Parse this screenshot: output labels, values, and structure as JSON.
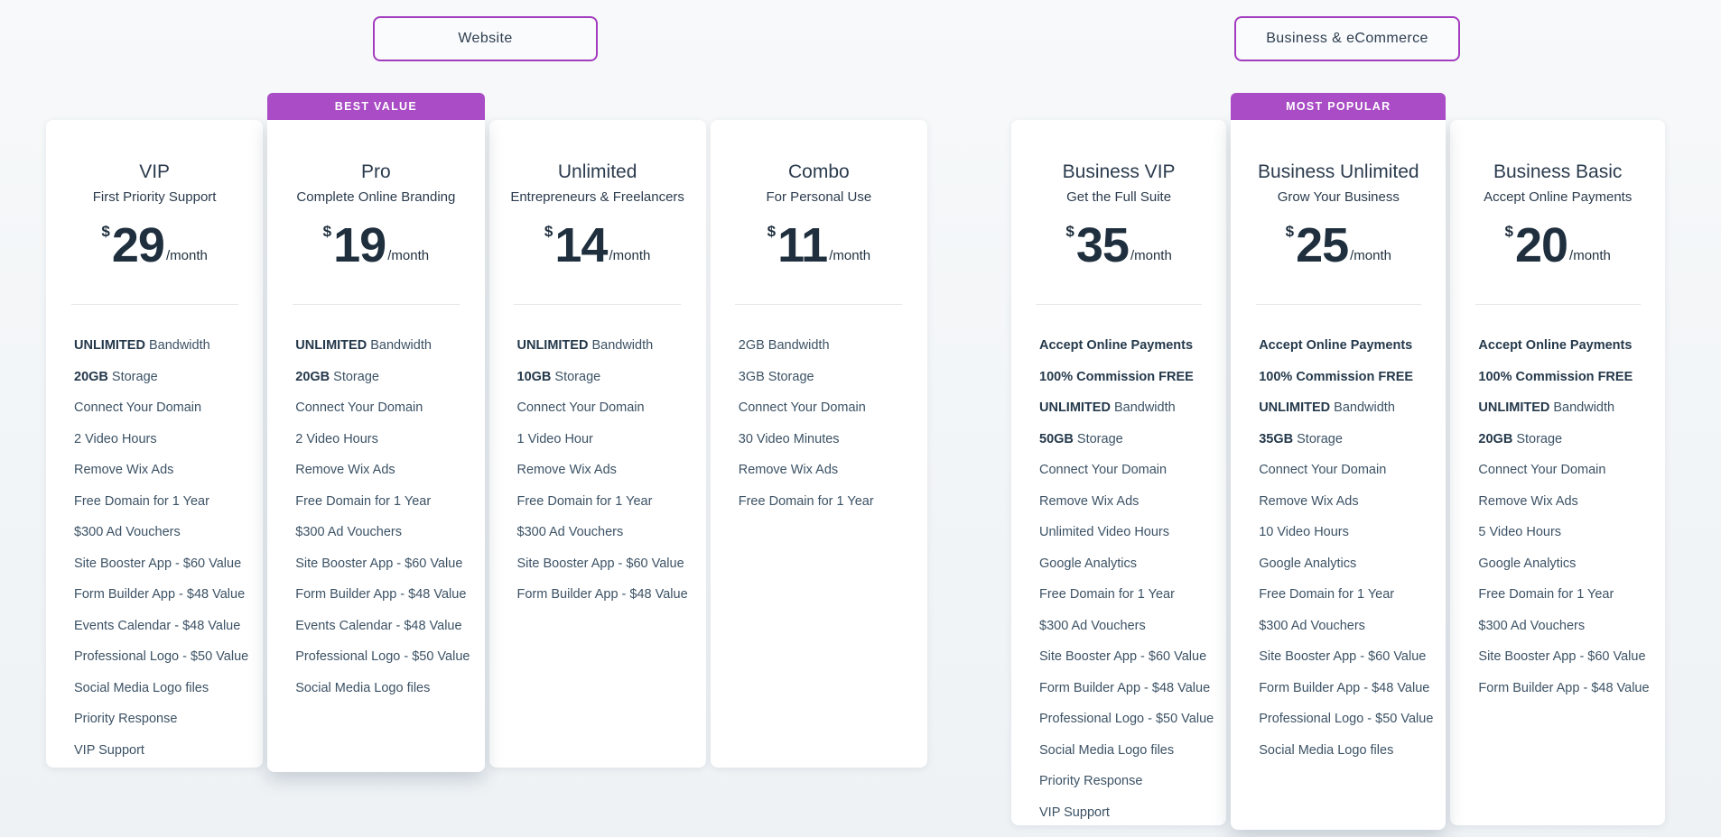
{
  "colors": {
    "accent_purple": "#a94cc5",
    "tab_border_purple": "#a43cc0",
    "heading_text": "#2b3b4d",
    "price_text": "#1f2f3e",
    "feature_text": "#3c5265",
    "card_background": "#ffffff",
    "page_background": "#f0f3f6",
    "badge_text": "#ffffff"
  },
  "sections": [
    {
      "id": "website",
      "tab_label": "Website",
      "plans": [
        {
          "name": "VIP",
          "subtitle": "First Priority Support",
          "currency": "$",
          "price": "29",
          "period": "/month",
          "badge": "",
          "featured": false,
          "features": [
            {
              "bold": "UNLIMITED",
              "text": " Bandwidth"
            },
            {
              "bold": "20GB",
              "text": " Storage"
            },
            {
              "bold": "",
              "text": "Connect Your Domain"
            },
            {
              "bold": "",
              "text": "2 Video Hours"
            },
            {
              "bold": "",
              "text": "Remove Wix Ads"
            },
            {
              "bold": "",
              "text": "Free Domain for 1 Year"
            },
            {
              "bold": "",
              "text": "$300 Ad Vouchers"
            },
            {
              "bold": "",
              "text": "Site Booster App - $60 Value"
            },
            {
              "bold": "",
              "text": "Form Builder App - $48 Value"
            },
            {
              "bold": "",
              "text": "Events Calendar - $48 Value"
            },
            {
              "bold": "",
              "text": "Professional Logo - $50 Value"
            },
            {
              "bold": "",
              "text": "Social Media Logo files"
            },
            {
              "bold": "",
              "text": "Priority Response"
            },
            {
              "bold": "",
              "text": "VIP Support"
            }
          ]
        },
        {
          "name": "Pro",
          "subtitle": "Complete Online Branding",
          "currency": "$",
          "price": "19",
          "period": "/month",
          "badge": "BEST VALUE",
          "featured": true,
          "features": [
            {
              "bold": "UNLIMITED",
              "text": " Bandwidth"
            },
            {
              "bold": "20GB",
              "text": " Storage"
            },
            {
              "bold": "",
              "text": "Connect Your Domain"
            },
            {
              "bold": "",
              "text": "2 Video Hours"
            },
            {
              "bold": "",
              "text": "Remove Wix Ads"
            },
            {
              "bold": "",
              "text": "Free Domain for 1 Year"
            },
            {
              "bold": "",
              "text": "$300 Ad Vouchers"
            },
            {
              "bold": "",
              "text": "Site Booster App - $60 Value"
            },
            {
              "bold": "",
              "text": "Form Builder App - $48 Value"
            },
            {
              "bold": "",
              "text": "Events Calendar - $48 Value"
            },
            {
              "bold": "",
              "text": "Professional Logo - $50 Value"
            },
            {
              "bold": "",
              "text": "Social Media Logo files"
            }
          ]
        },
        {
          "name": "Unlimited",
          "subtitle": "Entrepreneurs & Freelancers",
          "currency": "$",
          "price": "14",
          "period": "/month",
          "badge": "",
          "featured": false,
          "features": [
            {
              "bold": "UNLIMITED",
              "text": " Bandwidth"
            },
            {
              "bold": "10GB",
              "text": " Storage"
            },
            {
              "bold": "",
              "text": "Connect Your Domain"
            },
            {
              "bold": "",
              "text": "1 Video Hour"
            },
            {
              "bold": "",
              "text": "Remove Wix Ads"
            },
            {
              "bold": "",
              "text": "Free Domain for 1 Year"
            },
            {
              "bold": "",
              "text": "$300 Ad Vouchers"
            },
            {
              "bold": "",
              "text": "Site Booster App - $60 Value"
            },
            {
              "bold": "",
              "text": "Form Builder App - $48 Value"
            }
          ]
        },
        {
          "name": "Combo",
          "subtitle": "For Personal Use",
          "currency": "$",
          "price": "11",
          "period": "/month",
          "badge": "",
          "featured": false,
          "features": [
            {
              "bold": "",
              "text": "2GB Bandwidth"
            },
            {
              "bold": "",
              "text": "3GB Storage"
            },
            {
              "bold": "",
              "text": "Connect Your Domain"
            },
            {
              "bold": "",
              "text": "30 Video Minutes"
            },
            {
              "bold": "",
              "text": "Remove Wix Ads"
            },
            {
              "bold": "",
              "text": "Free Domain for 1 Year"
            }
          ]
        }
      ]
    },
    {
      "id": "business",
      "tab_label": "Business & eCommerce",
      "plans": [
        {
          "name": "Business VIP",
          "subtitle": "Get the Full Suite",
          "currency": "$",
          "price": "35",
          "period": "/month",
          "badge": "",
          "featured": false,
          "features": [
            {
              "bold": "Accept Online Payments",
              "text": ""
            },
            {
              "bold": "100% Commission FREE",
              "text": ""
            },
            {
              "bold": "UNLIMITED",
              "text": " Bandwidth"
            },
            {
              "bold": "50GB",
              "text": " Storage"
            },
            {
              "bold": "",
              "text": "Connect Your Domain"
            },
            {
              "bold": "",
              "text": "Remove Wix Ads"
            },
            {
              "bold": "",
              "text": "Unlimited Video Hours"
            },
            {
              "bold": "",
              "text": "Google Analytics"
            },
            {
              "bold": "",
              "text": "Free Domain for 1 Year"
            },
            {
              "bold": "",
              "text": "$300 Ad Vouchers"
            },
            {
              "bold": "",
              "text": "Site Booster App - $60 Value"
            },
            {
              "bold": "",
              "text": "Form Builder App - $48 Value"
            },
            {
              "bold": "",
              "text": "Professional Logo - $50 Value"
            },
            {
              "bold": "",
              "text": "Social Media Logo files"
            },
            {
              "bold": "",
              "text": "Priority Response"
            },
            {
              "bold": "",
              "text": "VIP Support"
            }
          ]
        },
        {
          "name": "Business Unlimited",
          "subtitle": "Grow Your Business",
          "currency": "$",
          "price": "25",
          "period": "/month",
          "badge": "MOST POPULAR",
          "featured": true,
          "features": [
            {
              "bold": "Accept Online Payments",
              "text": ""
            },
            {
              "bold": "100% Commission FREE",
              "text": ""
            },
            {
              "bold": "UNLIMITED",
              "text": " Bandwidth"
            },
            {
              "bold": "35GB",
              "text": " Storage"
            },
            {
              "bold": "",
              "text": "Connect Your Domain"
            },
            {
              "bold": "",
              "text": "Remove Wix Ads"
            },
            {
              "bold": "",
              "text": "10 Video Hours"
            },
            {
              "bold": "",
              "text": "Google Analytics"
            },
            {
              "bold": "",
              "text": "Free Domain for 1 Year"
            },
            {
              "bold": "",
              "text": "$300 Ad Vouchers"
            },
            {
              "bold": "",
              "text": "Site Booster App - $60 Value"
            },
            {
              "bold": "",
              "text": "Form Builder App - $48 Value"
            },
            {
              "bold": "",
              "text": "Professional Logo - $50 Value"
            },
            {
              "bold": "",
              "text": "Social Media Logo files"
            }
          ]
        },
        {
          "name": "Business Basic",
          "subtitle": "Accept Online Payments",
          "currency": "$",
          "price": "20",
          "period": "/month",
          "badge": "",
          "featured": false,
          "features": [
            {
              "bold": "Accept Online Payments",
              "text": ""
            },
            {
              "bold": "100% Commission FREE",
              "text": ""
            },
            {
              "bold": "UNLIMITED",
              "text": " Bandwidth"
            },
            {
              "bold": "20GB",
              "text": " Storage"
            },
            {
              "bold": "",
              "text": "Connect Your Domain"
            },
            {
              "bold": "",
              "text": "Remove Wix Ads"
            },
            {
              "bold": "",
              "text": "5 Video Hours"
            },
            {
              "bold": "",
              "text": "Google Analytics"
            },
            {
              "bold": "",
              "text": "Free Domain for 1 Year"
            },
            {
              "bold": "",
              "text": "$300 Ad Vouchers"
            },
            {
              "bold": "",
              "text": "Site Booster App - $60 Value"
            },
            {
              "bold": "",
              "text": "Form Builder App - $48 Value"
            }
          ]
        }
      ]
    }
  ]
}
